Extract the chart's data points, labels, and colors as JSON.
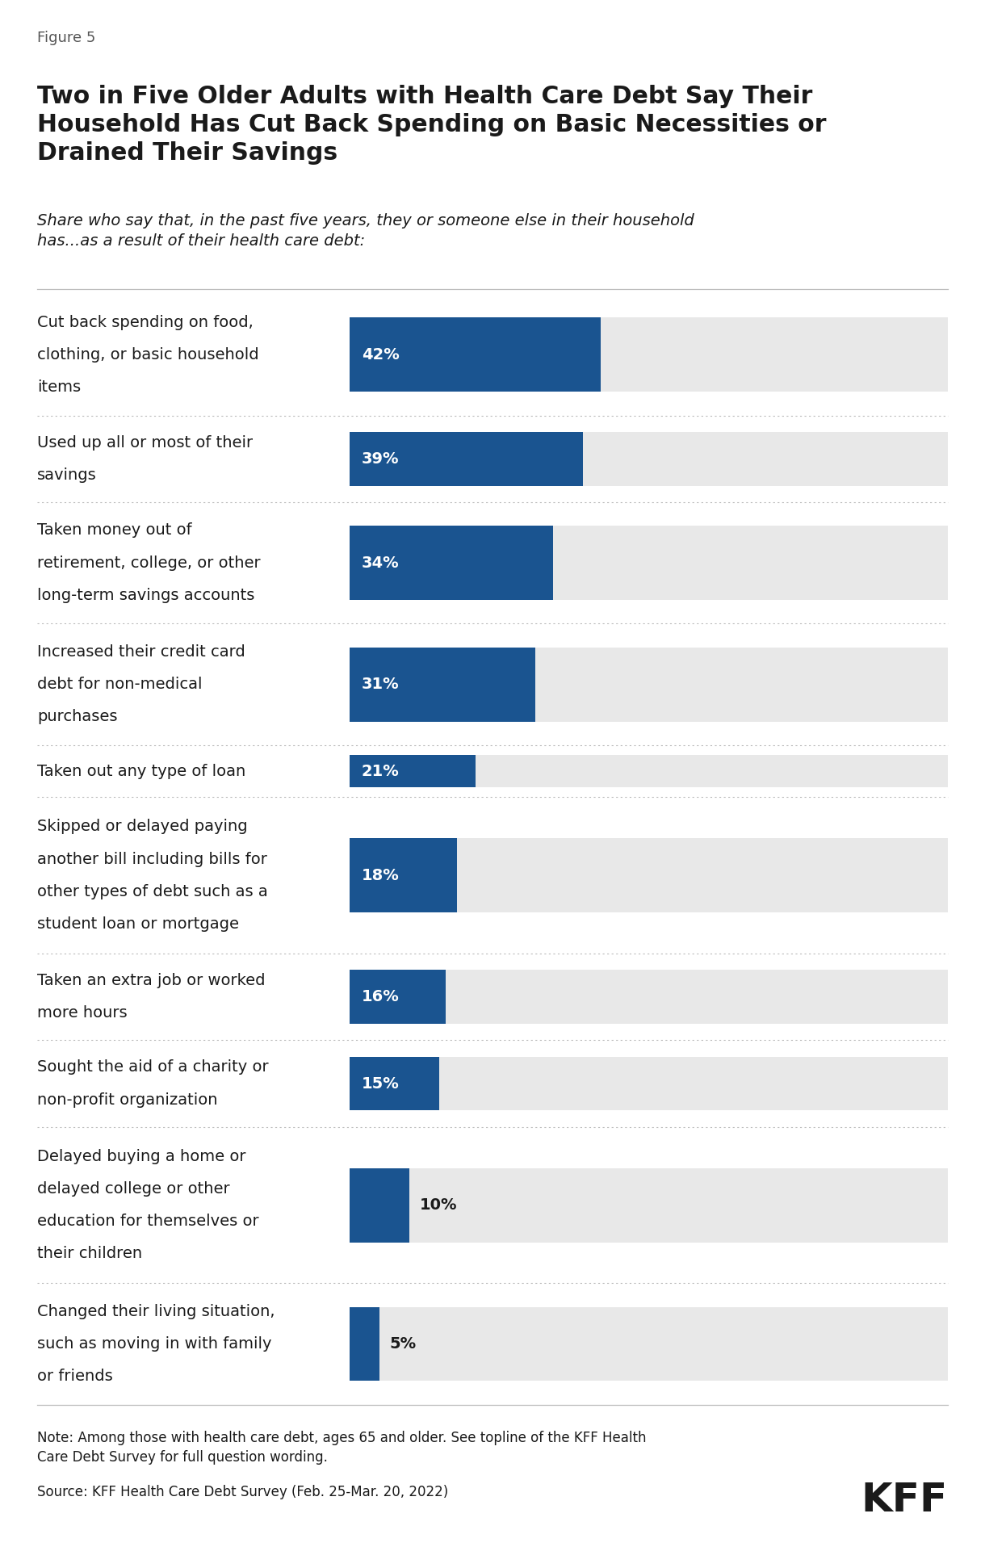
{
  "figure_label": "Figure 5",
  "title": "Two in Five Older Adults with Health Care Debt Say Their\nHousehold Has Cut Back Spending on Basic Necessities or\nDrained Their Savings",
  "subtitle": "Share who say that, in the past five years, they or someone else in their household\nhas...as a result of their health care debt:",
  "categories": [
    "Cut back spending on food,\nclothing, or basic household\nitems",
    "Used up all or most of their\nsavings",
    "Taken money out of\nretirement, college, or other\nlong-term savings accounts",
    "Increased their credit card\ndebt for non-medical\npurchases",
    "Taken out any type of loan",
    "Skipped or delayed paying\nanother bill including bills for\nother types of debt such as a\nstudent loan or mortgage",
    "Taken an extra job or worked\nmore hours",
    "Sought the aid of a charity or\nnon-profit organization",
    "Delayed buying a home or\ndelayed college or other\neducation for themselves or\ntheir children",
    "Changed their living situation,\nsuch as moving in with family\nor friends"
  ],
  "num_lines": [
    3,
    2,
    3,
    3,
    1,
    4,
    2,
    2,
    4,
    3
  ],
  "values": [
    42,
    39,
    34,
    31,
    21,
    18,
    16,
    15,
    10,
    5
  ],
  "value_outside": [
    false,
    false,
    false,
    false,
    false,
    false,
    false,
    false,
    true,
    true
  ],
  "bar_color": "#1a5490",
  "bar_bg_color": "#e8e8e8",
  "text_color": "#1a1a1a",
  "label_color_inside": "#ffffff",
  "label_color_outside": "#1a1a1a",
  "note_text": "Note: Among those with health care debt, ages 65 and older. See topline of the KFF Health\nCare Debt Survey for full question wording.",
  "source_text": "Source: KFF Health Care Debt Survey (Feb. 25-Mar. 20, 2022)",
  "kff_logo": "KFF",
  "max_value": 100,
  "bar_scale": 0.84,
  "background_color": "#ffffff"
}
